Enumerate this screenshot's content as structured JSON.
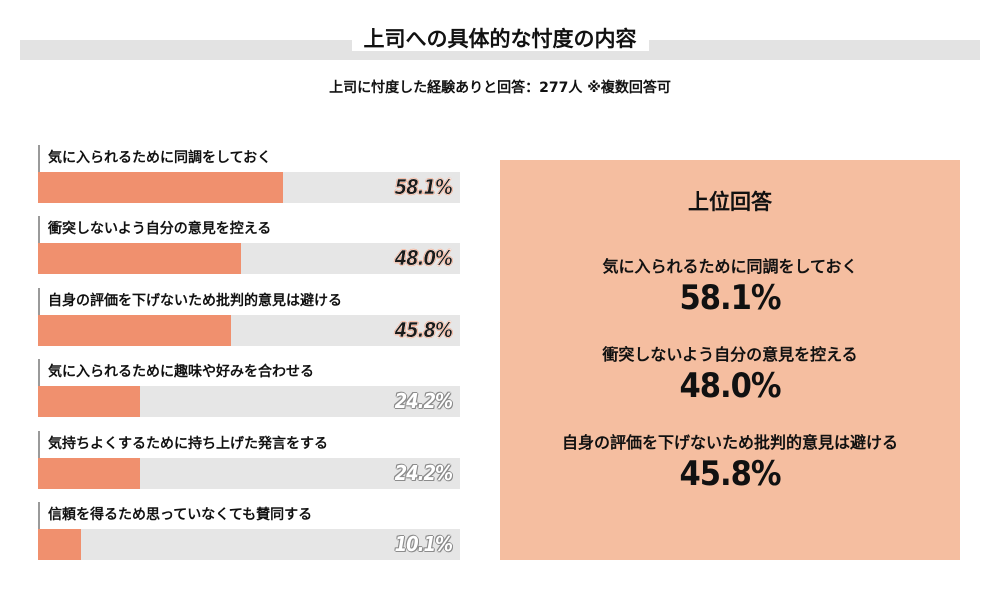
{
  "title": "上司への具体的な忖度の内容",
  "subtitle": "上司に忖度した経験ありと回答：277人 ※複数回答可",
  "chart_data": {
    "type": "bar",
    "orientation": "horizontal",
    "categories": [
      "気に入られるために同調をしておく",
      "衝突しないよう自分の意見を控える",
      "自身の評価を下げないため批判的意見は避ける",
      "気に入られるために趣味や好みを合わせる",
      "気持ちよくするために持ち上げた発言をする",
      "信頼を得るため思っていなくても賛同する"
    ],
    "values": [
      58.1,
      48.0,
      45.8,
      24.2,
      24.2,
      10.1
    ],
    "value_labels": [
      "58.1%",
      "48.0%",
      "45.8%",
      "24.2%",
      "24.2%",
      "10.1%"
    ],
    "xlim": [
      0,
      100
    ],
    "grid": false,
    "legend": "none",
    "bar_color": "#f0906e",
    "track_color": "#e6e6e6"
  },
  "panel": {
    "title": "上位回答",
    "background": "#f5bea0",
    "items": [
      {
        "label": "気に入られるために同調をしておく",
        "value": "58.1%"
      },
      {
        "label": "衝突しないよう自分の意見を控える",
        "value": "48.0%"
      },
      {
        "label": "自身の評価を下げないため批判的意見は避ける",
        "value": "45.8%"
      }
    ]
  }
}
